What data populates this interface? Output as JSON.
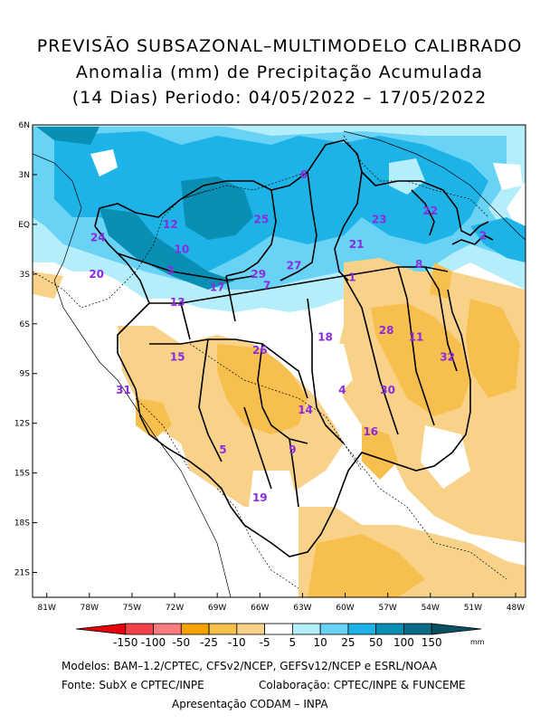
{
  "title": {
    "line1": "PREVISÃO SUBSAZONAL–MULTIMODELO CALIBRADO",
    "line2": "Anomalia (mm) de Precipitação Acumulada",
    "line3": "(14 Dias) Periodo: 04/05/2022 – 17/05/2022"
  },
  "map": {
    "lat_labels": [
      "6N",
      "3N",
      "EQ",
      "3S",
      "6S",
      "9S",
      "12S",
      "15S",
      "18S",
      "21S"
    ],
    "lon_labels": [
      "81W",
      "78W",
      "75W",
      "72W",
      "69W",
      "66W",
      "63W",
      "60W",
      "57W",
      "54W",
      "51W",
      "48W"
    ],
    "basins": [
      {
        "id": "1",
        "lon": -59.5,
        "lat": -3.2
      },
      {
        "id": "2",
        "lon": -50.3,
        "lat": -0.7
      },
      {
        "id": "3",
        "lon": -72.3,
        "lat": -2.8
      },
      {
        "id": "4",
        "lon": -60.2,
        "lat": -10.0
      },
      {
        "id": "5",
        "lon": -68.6,
        "lat": -13.6
      },
      {
        "id": "6",
        "lon": -62.9,
        "lat": 3.0
      },
      {
        "id": "7",
        "lon": -65.5,
        "lat": -3.7
      },
      {
        "id": "8",
        "lon": -54.8,
        "lat": -2.4
      },
      {
        "id": "9",
        "lon": -63.7,
        "lat": -13.6
      },
      {
        "id": "10",
        "lon": -71.5,
        "lat": -1.5
      },
      {
        "id": "11",
        "lon": -55.0,
        "lat": -6.8
      },
      {
        "id": "12",
        "lon": -72.3,
        "lat": 0.0
      },
      {
        "id": "13",
        "lon": -71.8,
        "lat": -4.7
      },
      {
        "id": "14",
        "lon": -62.8,
        "lat": -11.2
      },
      {
        "id": "15",
        "lon": -71.8,
        "lat": -8.0
      },
      {
        "id": "16",
        "lon": -58.2,
        "lat": -12.5
      },
      {
        "id": "17",
        "lon": -69.0,
        "lat": -3.8
      },
      {
        "id": "18",
        "lon": -61.4,
        "lat": -6.8
      },
      {
        "id": "19",
        "lon": -66.0,
        "lat": -16.5
      },
      {
        "id": "20",
        "lon": -77.5,
        "lat": -3.0
      },
      {
        "id": "21",
        "lon": -59.2,
        "lat": -1.2
      },
      {
        "id": "22",
        "lon": -54.0,
        "lat": 0.8
      },
      {
        "id": "23",
        "lon": -57.6,
        "lat": 0.3
      },
      {
        "id": "24",
        "lon": -77.4,
        "lat": -0.8
      },
      {
        "id": "25",
        "lon": -65.9,
        "lat": 0.3
      },
      {
        "id": "26",
        "lon": -66.0,
        "lat": -7.6
      },
      {
        "id": "27",
        "lon": -63.6,
        "lat": -2.5
      },
      {
        "id": "28",
        "lon": -57.1,
        "lat": -6.4
      },
      {
        "id": "29",
        "lon": -66.1,
        "lat": -3.0
      },
      {
        "id": "30",
        "lon": -57.0,
        "lat": -10.0
      },
      {
        "id": "31",
        "lon": -75.6,
        "lat": -10.0
      },
      {
        "id": "32",
        "lon": -52.8,
        "lat": -8.0
      }
    ]
  },
  "colorbar": {
    "labels": [
      "-150",
      "-100",
      "-50",
      "-25",
      "-10",
      "-5",
      "5",
      "10",
      "25",
      "50",
      "100",
      "150"
    ],
    "colors": [
      "#e6000b",
      "#f5424b",
      "#fa7b80",
      "#f5a100",
      "#f7bf4d",
      "#f9d28a",
      "#ffffff",
      "#b4eefa",
      "#69d3f5",
      "#1eb3e6",
      "#0a8fb4",
      "#0a6b86",
      "#0b4f62"
    ],
    "unit": "mm"
  },
  "credits": {
    "models": "Modelos: BAM–1.2/CPTEC, CFSv2/NCEP, GEFSv12/NCEP e ESRL/NOAA",
    "source": "Fonte: SubX e CPTEC/INPE",
    "collab": "Colaboração: CPTEC/INPE & FUNCEME",
    "presentation": "Apresentação CODAM – INPA"
  }
}
